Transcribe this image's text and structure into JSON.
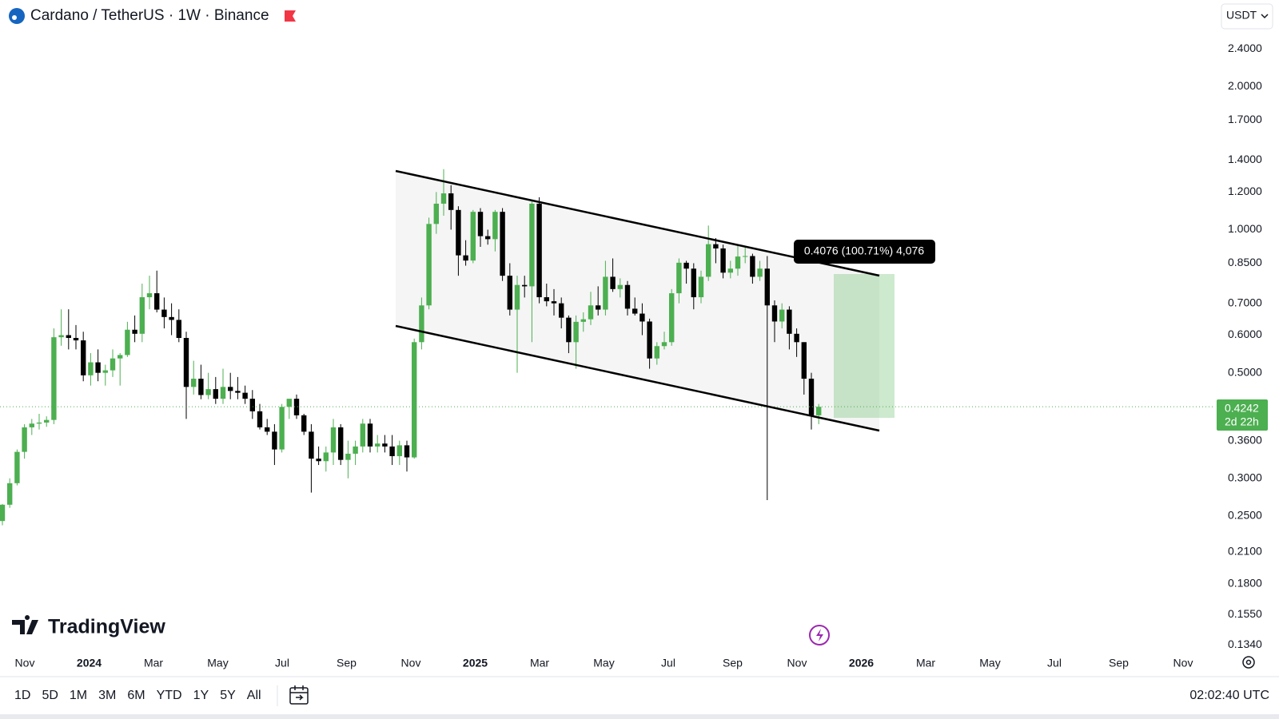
{
  "header": {
    "title": "Cardano / TetherUS · 1W · Binance",
    "currency": "USDT"
  },
  "logo": "TradingView",
  "chart_data": {
    "type": "candlestick",
    "log_scale": true,
    "grid": false,
    "up_color": "#4caf50",
    "down_color": "#000000",
    "ylim": [
      0.132,
      3.04
    ],
    "yticks": [
      {
        "value": 2.4,
        "label": "2.4000"
      },
      {
        "value": 2.0,
        "label": "2.0000"
      },
      {
        "value": 1.7,
        "label": "1.7000"
      },
      {
        "value": 1.4,
        "label": "1.4000"
      },
      {
        "value": 1.2,
        "label": "1.2000"
      },
      {
        "value": 1.0,
        "label": "1.0000"
      },
      {
        "value": 0.85,
        "label": "0.8500"
      },
      {
        "value": 0.7,
        "label": "0.7000"
      },
      {
        "value": 0.6,
        "label": "0.6000"
      },
      {
        "value": 0.5,
        "label": "0.5000"
      },
      {
        "value": 0.36,
        "label": "0.3600"
      },
      {
        "value": 0.3,
        "label": "0.3000"
      },
      {
        "value": 0.25,
        "label": "0.2500"
      },
      {
        "value": 0.21,
        "label": "0.2100"
      },
      {
        "value": 0.18,
        "label": "0.1800"
      },
      {
        "value": 0.155,
        "label": "0.1550"
      },
      {
        "value": 0.134,
        "label": "0.1340"
      }
    ],
    "x_labels": [
      "Nov",
      "2024",
      "Mar",
      "May",
      "Jul",
      "Sep",
      "Nov",
      "2025",
      "Mar",
      "May",
      "Jul",
      "Sep",
      "Nov",
      "2026",
      "Mar",
      "May",
      "Jul",
      "Sep",
      "Nov"
    ],
    "open": [
      0.244,
      0.264,
      0.293,
      0.341,
      0.384,
      0.391,
      0.393,
      0.398,
      0.594,
      0.6,
      0.592,
      0.585,
      0.494,
      0.526,
      0.5,
      0.506,
      0.536,
      0.545,
      0.616,
      0.604,
      0.721,
      0.735,
      0.679,
      0.655,
      0.646,
      0.592,
      0.467,
      0.486,
      0.449,
      0.462,
      0.441,
      0.467,
      0.458,
      0.454,
      0.441,
      0.415,
      0.384,
      0.376,
      0.345,
      0.424,
      0.441,
      0.407,
      0.376,
      0.33,
      0.326,
      0.34,
      0.384,
      0.328,
      0.338,
      0.35,
      0.391,
      0.35,
      0.355,
      0.35,
      0.334,
      0.352,
      0.332,
      0.58,
      0.693,
      1.028,
      1.134,
      1.192,
      1.1,
      0.883,
      0.861,
      1.09,
      0.969,
      0.955,
      1.09,
      0.8,
      0.679,
      0.765,
      0.76,
      1.134,
      0.721,
      0.707,
      0.7,
      0.653,
      0.58,
      0.64,
      0.648,
      0.693,
      0.679,
      0.796,
      0.75,
      0.765,
      0.682,
      0.666,
      0.641,
      0.536,
      0.569,
      0.58,
      0.735,
      0.852,
      0.828,
      0.721,
      0.796,
      0.932,
      0.913,
      0.812,
      0.828,
      0.878,
      0.88,
      0.796,
      0.828,
      0.693,
      0.641,
      0.679,
      0.604,
      0.58,
      0.486,
      0.407
    ],
    "high": [
      0.265,
      0.3,
      0.345,
      0.39,
      0.4,
      0.41,
      0.405,
      0.62,
      0.68,
      0.68,
      0.63,
      0.61,
      0.55,
      0.56,
      0.52,
      0.56,
      0.55,
      0.64,
      0.66,
      0.77,
      0.8,
      0.82,
      0.72,
      0.7,
      0.68,
      0.61,
      0.53,
      0.52,
      0.5,
      0.49,
      0.51,
      0.5,
      0.49,
      0.47,
      0.46,
      0.43,
      0.4,
      0.39,
      0.43,
      0.44,
      0.45,
      0.41,
      0.39,
      0.35,
      0.35,
      0.4,
      0.39,
      0.36,
      0.36,
      0.4,
      0.4,
      0.37,
      0.37,
      0.37,
      0.36,
      0.36,
      0.59,
      0.72,
      1.06,
      1.2,
      1.34,
      1.24,
      1.12,
      0.95,
      1.1,
      1.11,
      1.0,
      1.1,
      1.11,
      0.85,
      0.8,
      0.8,
      1.15,
      1.17,
      0.77,
      0.75,
      0.72,
      0.66,
      0.66,
      0.67,
      0.74,
      0.76,
      0.86,
      0.87,
      0.79,
      0.78,
      0.72,
      0.7,
      0.65,
      0.58,
      0.61,
      0.75,
      0.87,
      0.86,
      0.85,
      0.82,
      1.02,
      0.96,
      0.93,
      0.86,
      0.93,
      0.92,
      0.89,
      0.86,
      0.88,
      0.71,
      0.7,
      0.69,
      0.62,
      0.58,
      0.5,
      0.43
    ],
    "low": [
      0.239,
      0.26,
      0.29,
      0.33,
      0.37,
      0.38,
      0.385,
      0.39,
      0.57,
      0.56,
      0.56,
      0.48,
      0.47,
      0.48,
      0.47,
      0.49,
      0.47,
      0.54,
      0.58,
      0.58,
      0.68,
      0.67,
      0.62,
      0.6,
      0.58,
      0.4,
      0.45,
      0.44,
      0.44,
      0.43,
      0.43,
      0.44,
      0.44,
      0.43,
      0.4,
      0.38,
      0.37,
      0.32,
      0.34,
      0.4,
      0.4,
      0.37,
      0.28,
      0.32,
      0.31,
      0.32,
      0.32,
      0.3,
      0.32,
      0.34,
      0.34,
      0.34,
      0.34,
      0.32,
      0.32,
      0.31,
      0.33,
      0.56,
      0.68,
      0.98,
      1.07,
      1.0,
      0.8,
      0.84,
      0.85,
      0.92,
      0.93,
      0.9,
      0.78,
      0.66,
      0.5,
      0.72,
      0.58,
      0.7,
      0.69,
      0.66,
      0.62,
      0.55,
      0.51,
      0.61,
      0.63,
      0.66,
      0.66,
      0.74,
      0.72,
      0.66,
      0.66,
      0.6,
      0.51,
      0.52,
      0.56,
      0.57,
      0.7,
      0.77,
      0.68,
      0.7,
      0.78,
      0.85,
      0.79,
      0.79,
      0.8,
      0.85,
      0.77,
      0.78,
      0.27,
      0.58,
      0.62,
      0.56,
      0.54,
      0.45,
      0.38,
      0.39
    ],
    "close": [
      0.264,
      0.293,
      0.341,
      0.384,
      0.391,
      0.393,
      0.398,
      0.594,
      0.6,
      0.592,
      0.585,
      0.494,
      0.526,
      0.5,
      0.506,
      0.536,
      0.545,
      0.616,
      0.604,
      0.721,
      0.735,
      0.679,
      0.655,
      0.646,
      0.592,
      0.467,
      0.486,
      0.449,
      0.462,
      0.441,
      0.467,
      0.458,
      0.454,
      0.441,
      0.415,
      0.384,
      0.376,
      0.345,
      0.424,
      0.441,
      0.407,
      0.376,
      0.33,
      0.326,
      0.34,
      0.384,
      0.328,
      0.338,
      0.35,
      0.391,
      0.35,
      0.355,
      0.35,
      0.334,
      0.352,
      0.332,
      0.58,
      0.693,
      1.028,
      1.134,
      1.192,
      1.1,
      0.883,
      0.861,
      1.09,
      0.969,
      0.955,
      1.09,
      0.8,
      0.679,
      0.765,
      0.76,
      1.134,
      0.721,
      0.707,
      0.7,
      0.653,
      0.58,
      0.64,
      0.648,
      0.693,
      0.679,
      0.796,
      0.75,
      0.765,
      0.682,
      0.666,
      0.641,
      0.536,
      0.569,
      0.58,
      0.735,
      0.852,
      0.828,
      0.721,
      0.796,
      0.932,
      0.913,
      0.812,
      0.828,
      0.878,
      0.88,
      0.796,
      0.828,
      0.693,
      0.641,
      0.679,
      0.604,
      0.58,
      0.486,
      0.407,
      0.4242
    ],
    "last_price_label": "0.4242",
    "countdown": "2d 22h",
    "measure_label": "0.4076 (100.71%) 4,076"
  },
  "toolbar": {
    "ranges": [
      "1D",
      "5D",
      "1M",
      "3M",
      "6M",
      "YTD",
      "1Y",
      "5Y",
      "All"
    ],
    "clock": "02:02:40 UTC"
  }
}
